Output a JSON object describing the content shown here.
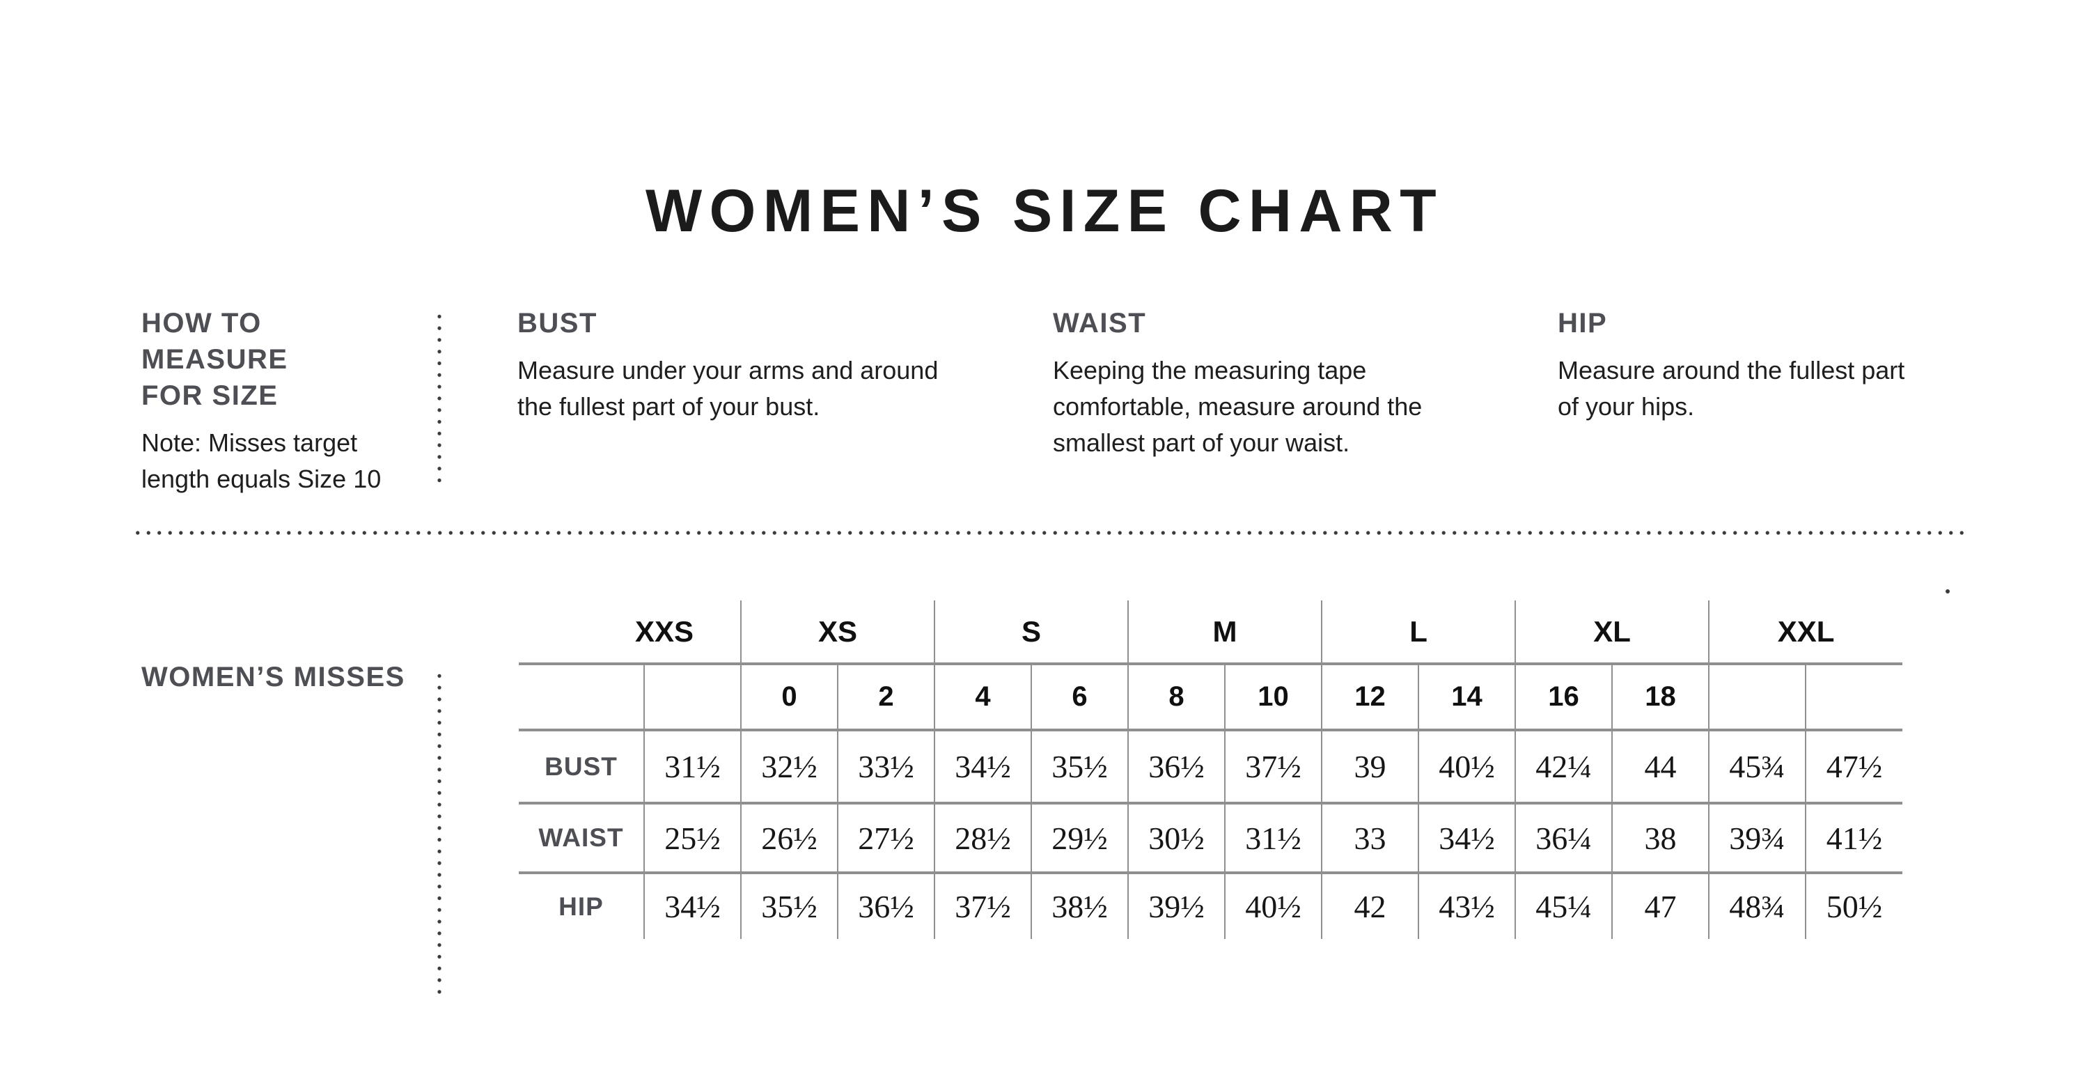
{
  "title": "WOMEN’S SIZE CHART",
  "instructions": {
    "measure_heading": "HOW TO MEASURE\nFOR SIZE",
    "measure_note": "Note: Misses target\nlength equals Size 10",
    "columns": [
      {
        "heading": "BUST",
        "text": "Measure under your arms and around\nthe fullest part of your bust."
      },
      {
        "heading": "WAIST",
        "text": "Keeping the measuring tape\ncomfortable, measure around the\nsmallest part of your waist."
      },
      {
        "heading": "HIP",
        "text": "Measure around the fullest part\nof your hips."
      }
    ]
  },
  "section_label": "WOMEN’S MISSES",
  "size_table": {
    "group_headers": [
      "XXS",
      "XS",
      "S",
      "M",
      "L",
      "XL",
      "XXL"
    ],
    "numeric_sizes": [
      "",
      "0",
      "2",
      "4",
      "6",
      "8",
      "10",
      "12",
      "14",
      "16",
      "18",
      "",
      ""
    ],
    "rows": [
      {
        "label": "BUST",
        "values": [
          "31½",
          "32½",
          "33½",
          "34½",
          "35½",
          "36½",
          "37½",
          "39",
          "40½",
          "42¼",
          "44",
          "45¾",
          "47½"
        ]
      },
      {
        "label": "WAIST",
        "values": [
          "25½",
          "26½",
          "27½",
          "28½",
          "29½",
          "30½",
          "31½",
          "33",
          "34½",
          "36¼",
          "38",
          "39¾",
          "41½"
        ]
      },
      {
        "label": "HIP",
        "values": [
          "34½",
          "35½",
          "36½",
          "37½",
          "38½",
          "39½",
          "40½",
          "42",
          "43½",
          "45¼",
          "47",
          "48¾",
          "50½"
        ]
      }
    ]
  },
  "colors": {
    "ink": "#1b1b1b",
    "gray_label": "#4e4f54",
    "body_ink": "#1e1e1e",
    "table_line": "#8f8f8f",
    "dot": "#3b3b3b"
  }
}
